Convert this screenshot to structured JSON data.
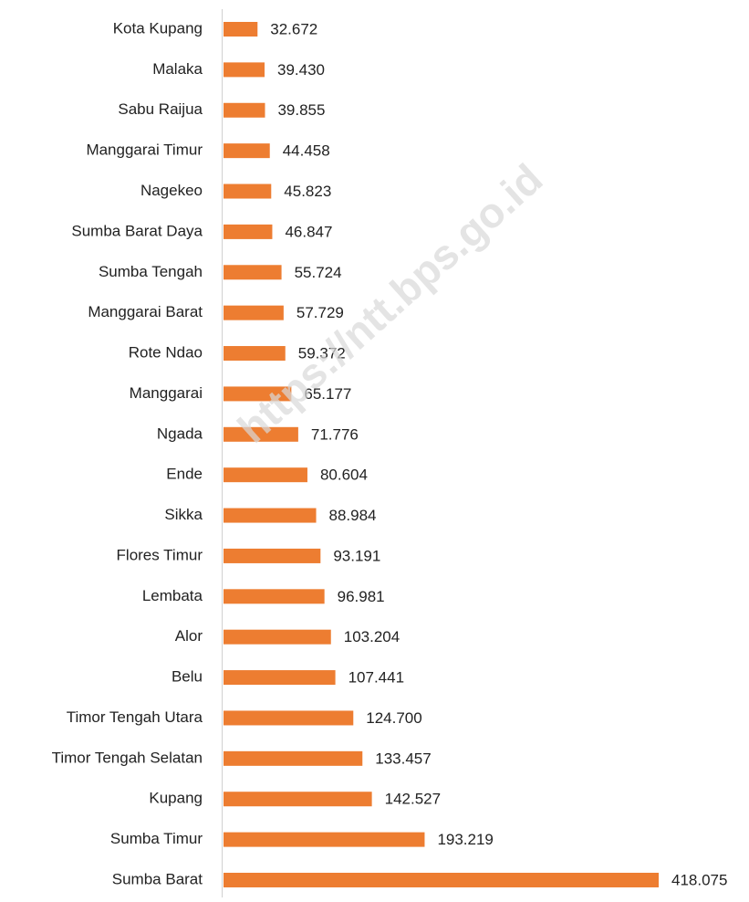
{
  "chart_data": {
    "type": "bar",
    "orientation": "horizontal",
    "color": "#ed7d31",
    "watermark": "https://ntt.bps.go.id",
    "categories": [
      "Kota Kupang",
      "Malaka",
      "Sabu Raijua",
      "Manggarai Timur",
      "Nagekeo",
      "Sumba Barat Daya",
      "Sumba Tengah",
      "Manggarai Barat",
      "Rote Ndao",
      "Manggarai",
      "Ngada",
      "Ende",
      "Sikka",
      "Flores Timur",
      "Lembata",
      "Alor",
      "Belu",
      "Timor Tengah Utara",
      "Timor Tengah Selatan",
      "Kupang",
      "Sumba Timur",
      "Sumba Barat"
    ],
    "values": [
      32672,
      39430,
      39855,
      44458,
      45823,
      46847,
      55724,
      57729,
      59372,
      65177,
      71776,
      80604,
      88984,
      93191,
      96981,
      103204,
      107441,
      124700,
      133457,
      142527,
      193219,
      418075
    ],
    "value_labels": [
      "32.672",
      "39.430",
      "39.855",
      "44.458",
      "45.823",
      "46.847",
      "55.724",
      "57.729",
      "59.372",
      "65.177",
      "71.776",
      "80.604",
      "88.984",
      "93.191",
      "96.981",
      "103.204",
      "107.441",
      "124.700",
      "133.457",
      "142.527",
      "193.219",
      "418.075"
    ]
  }
}
